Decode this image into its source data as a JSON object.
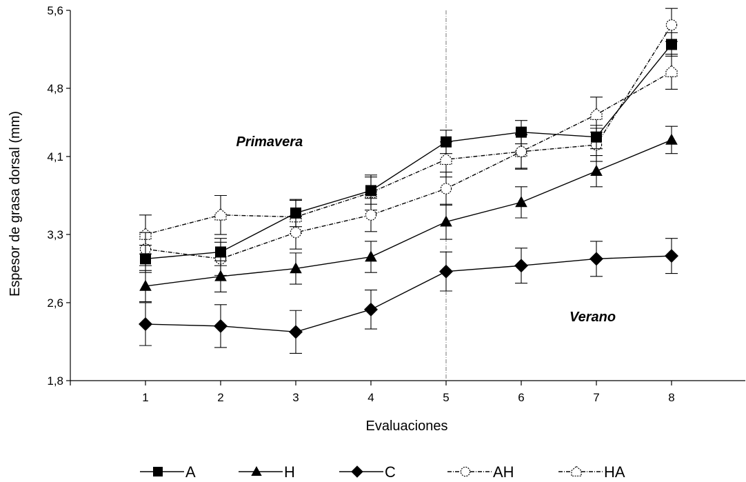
{
  "chart_data": {
    "type": "line",
    "xlabel": "Evaluaciones",
    "ylabel": "Espesor de grasa dorsal (mm)",
    "x": [
      1,
      2,
      3,
      4,
      5,
      6,
      7,
      8
    ],
    "x_tick_labels": [
      "1",
      "2",
      "3",
      "4",
      "5",
      "6",
      "7",
      "8"
    ],
    "y_ticks": [
      "1,8",
      "2,6",
      "3,3",
      "4,1",
      "4,8",
      "5,6"
    ],
    "y_tick_values": [
      1.8,
      2.6,
      3.3,
      4.1,
      4.8,
      5.6
    ],
    "xlim": [
      0,
      9
    ],
    "ylim": [
      1.8,
      5.6
    ],
    "vertical_reference_line_x": 5,
    "annotations": [
      {
        "text": "Primavera",
        "x": 2.65,
        "y": 4.25
      },
      {
        "text": "Verano",
        "x": 6.95,
        "y": 2.45
      }
    ],
    "legend_position": "bottom",
    "grid": false,
    "series": [
      {
        "name": "A",
        "marker": "square-filled",
        "line": "solid",
        "values": [
          3.05,
          3.12,
          3.52,
          3.75,
          4.25,
          4.35,
          4.3,
          5.25
        ],
        "error": [
          0.14,
          0.14,
          0.14,
          0.14,
          0.12,
          0.12,
          0.12,
          0.12
        ]
      },
      {
        "name": "H",
        "marker": "triangle-filled",
        "line": "solid",
        "values": [
          2.77,
          2.87,
          2.95,
          3.07,
          3.43,
          3.63,
          3.95,
          4.27
        ],
        "error": [
          0.16,
          0.16,
          0.16,
          0.16,
          0.18,
          0.16,
          0.16,
          0.14
        ]
      },
      {
        "name": "C",
        "marker": "diamond-filled",
        "line": "solid",
        "values": [
          2.38,
          2.36,
          2.3,
          2.53,
          2.92,
          2.98,
          3.05,
          3.08
        ],
        "error": [
          0.22,
          0.22,
          0.22,
          0.2,
          0.2,
          0.18,
          0.18,
          0.18
        ]
      },
      {
        "name": "AH",
        "marker": "circle-open",
        "line": "dash-dot",
        "values": [
          3.15,
          3.05,
          3.32,
          3.5,
          3.77,
          4.15,
          4.22,
          5.45
        ],
        "error": [
          0.17,
          0.17,
          0.17,
          0.17,
          0.17,
          0.17,
          0.17,
          0.17
        ]
      },
      {
        "name": "HA",
        "marker": "house-open",
        "line": "dash-dot",
        "values": [
          3.3,
          3.5,
          3.48,
          3.73,
          4.07,
          4.15,
          4.53,
          4.97
        ],
        "error": [
          0.2,
          0.2,
          0.17,
          0.18,
          0.18,
          0.18,
          0.18,
          0.18
        ]
      }
    ]
  }
}
